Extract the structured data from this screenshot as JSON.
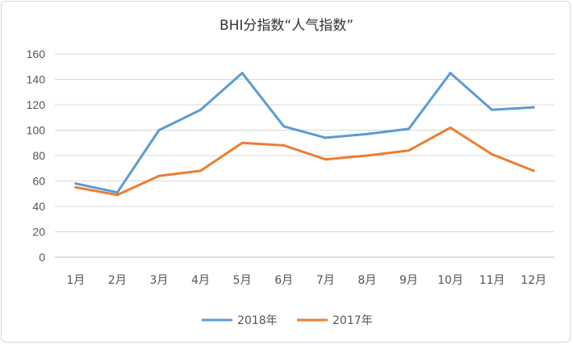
{
  "chart_data": {
    "type": "line",
    "title": "BHI分指数“人气指数”",
    "xlabel": "",
    "ylabel": "",
    "ylim": [
      0,
      160
    ],
    "yticks": [
      0,
      20,
      40,
      60,
      80,
      100,
      120,
      140,
      160
    ],
    "grid": true,
    "legend_position": "bottom",
    "categories": [
      "1月",
      "2月",
      "3月",
      "4月",
      "5月",
      "6月",
      "7月",
      "8月",
      "9月",
      "10月",
      "11月",
      "12月"
    ],
    "series": [
      {
        "name": "2018年",
        "color": "#5b9bd5",
        "values": [
          58,
          51,
          100,
          116,
          145,
          103,
          94,
          97,
          101,
          145,
          116,
          118
        ]
      },
      {
        "name": "2017年",
        "color": "#ed7d31",
        "values": [
          55,
          49,
          64,
          68,
          90,
          88,
          77,
          80,
          84,
          102,
          81,
          68
        ]
      }
    ]
  }
}
